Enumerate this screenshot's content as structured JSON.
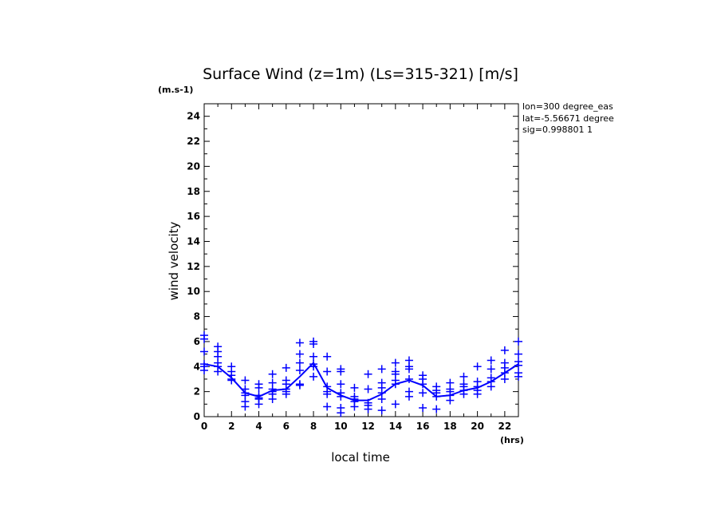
{
  "chart_data": {
    "type": "scatter",
    "title": "Surface Wind (z=1m) (Ls=315-321) [m/s]",
    "ylabel": "wind velocity",
    "yunit": "(m.s-1)",
    "xlabel": "local time",
    "xunit": "(hrs)",
    "xlim": [
      0,
      23
    ],
    "ylim": [
      0,
      25
    ],
    "x_ticks": [
      0,
      2,
      4,
      6,
      8,
      10,
      12,
      14,
      16,
      18,
      20,
      22
    ],
    "y_ticks": [
      0,
      2,
      4,
      6,
      8,
      10,
      12,
      14,
      16,
      18,
      20,
      22,
      24
    ],
    "info": [
      "lon=300 degree_eas",
      "lat=-5.56671 degree",
      "sig=0.998801 1"
    ],
    "color": "#0000ff",
    "scatter_points": [
      {
        "x": 0,
        "y": [
          6.5,
          6.2,
          5.2,
          4.2,
          4.0,
          3.7
        ]
      },
      {
        "x": 1,
        "y": [
          5.6,
          5.2,
          4.8,
          4.3,
          4.0,
          3.6
        ]
      },
      {
        "x": 2,
        "y": [
          4.0,
          3.6,
          3.3,
          3.0,
          2.9
        ]
      },
      {
        "x": 3,
        "y": [
          2.9,
          2.2,
          1.9,
          1.7,
          1.2,
          0.8
        ]
      },
      {
        "x": 4,
        "y": [
          2.6,
          2.3,
          1.7,
          1.5,
          1.4,
          1.0
        ]
      },
      {
        "x": 5,
        "y": [
          3.4,
          2.7,
          2.2,
          2.0,
          1.8,
          1.4
        ]
      },
      {
        "x": 6,
        "y": [
          3.9,
          2.9,
          2.6,
          2.2,
          2.0,
          1.8
        ]
      },
      {
        "x": 7,
        "y": [
          5.9,
          5.0,
          4.3,
          3.7,
          2.6,
          2.5
        ]
      },
      {
        "x": 8,
        "y": [
          6.0,
          5.8,
          4.8,
          4.2,
          4.0,
          3.2
        ]
      },
      {
        "x": 9,
        "y": [
          4.8,
          3.6,
          2.4,
          2.0,
          1.8,
          0.8
        ]
      },
      {
        "x": 10,
        "y": [
          3.8,
          3.6,
          2.6,
          1.9,
          1.6,
          0.7,
          0.3
        ]
      },
      {
        "x": 11,
        "y": [
          2.3,
          1.6,
          1.4,
          1.2,
          0.8
        ]
      },
      {
        "x": 12,
        "y": [
          3.4,
          2.2,
          1.1,
          0.9,
          0.6
        ]
      },
      {
        "x": 13,
        "y": [
          3.8,
          2.7,
          2.3,
          1.9,
          1.4,
          0.5
        ]
      },
      {
        "x": 14,
        "y": [
          4.3,
          3.6,
          3.4,
          2.9,
          2.6,
          1.0
        ]
      },
      {
        "x": 15,
        "y": [
          4.5,
          4.0,
          3.8,
          3.0,
          2.0,
          1.6
        ]
      },
      {
        "x": 16,
        "y": [
          3.3,
          3.0,
          2.6,
          1.9,
          0.7
        ]
      },
      {
        "x": 17,
        "y": [
          2.4,
          2.1,
          1.9,
          1.6,
          0.6
        ]
      },
      {
        "x": 18,
        "y": [
          2.7,
          2.2,
          2.0,
          1.7,
          1.3
        ]
      },
      {
        "x": 19,
        "y": [
          3.2,
          2.6,
          2.4,
          2.1,
          1.8
        ]
      },
      {
        "x": 20,
        "y": [
          4.0,
          2.8,
          2.4,
          2.1,
          1.8
        ]
      },
      {
        "x": 21,
        "y": [
          4.5,
          3.8,
          3.1,
          2.8,
          2.4
        ]
      },
      {
        "x": 22,
        "y": [
          5.3,
          4.3,
          3.9,
          3.5,
          3.0
        ]
      },
      {
        "x": 23,
        "y": [
          6.0,
          5.0,
          4.4,
          4.1,
          3.5,
          3.2
        ]
      }
    ],
    "mean_line": {
      "x": [
        0,
        1,
        2,
        3,
        4,
        5,
        6,
        7,
        8,
        9,
        10,
        11,
        12,
        13,
        14,
        15,
        16,
        17,
        18,
        19,
        20,
        21,
        22,
        23
      ],
      "y": [
        4.2,
        4.0,
        3.1,
        1.9,
        1.6,
        2.1,
        2.2,
        3.2,
        4.3,
        2.3,
        1.7,
        1.3,
        1.3,
        1.8,
        2.6,
        2.9,
        2.5,
        1.6,
        1.7,
        2.1,
        2.3,
        2.8,
        3.5,
        4.2
      ]
    }
  }
}
